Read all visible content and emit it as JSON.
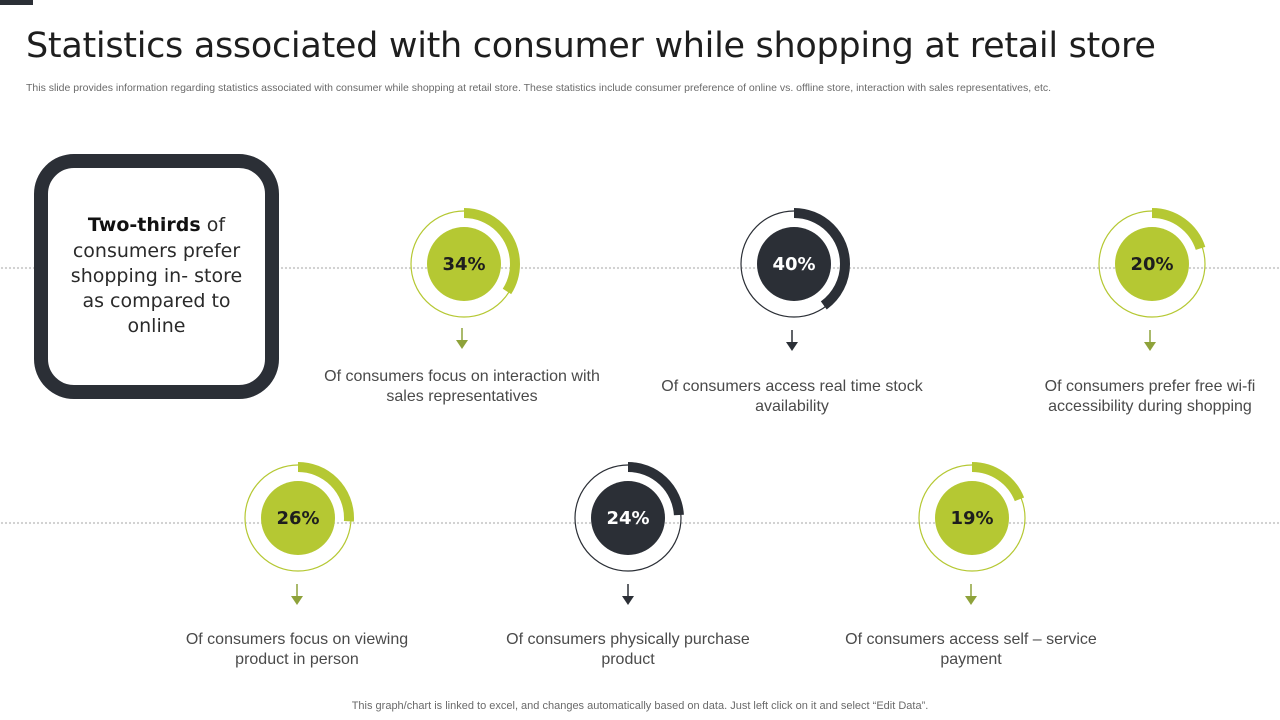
{
  "title": "Statistics associated with consumer while shopping at retail store",
  "subtitle": "This slide provides information regarding statistics associated with consumer while shopping at retail store. These statistics include consumer preference of online vs. offline store, interaction with sales representatives, etc.",
  "callout": {
    "highlight": "Two-thirds",
    "text": " of consumers prefer shopping in- store as compared to online"
  },
  "colors": {
    "green": "#b5c833",
    "dark": "#2b2f36"
  },
  "stats": [
    {
      "value_label": "34%",
      "value": 34,
      "color": "green",
      "caption": "Of consumers focus on interaction with sales representatives"
    },
    {
      "value_label": "40%",
      "value": 40,
      "color": "dark",
      "caption": "Of consumers access real time stock availability"
    },
    {
      "value_label": "20%",
      "value": 20,
      "color": "green",
      "caption": "Of consumers prefer free wi-fi accessibility during shopping"
    },
    {
      "value_label": "26%",
      "value": 26,
      "color": "green",
      "caption": "Of consumers focus on viewing product in person"
    },
    {
      "value_label": "24%",
      "value": 24,
      "color": "dark",
      "caption": "Of consumers physically purchase product"
    },
    {
      "value_label": "19%",
      "value": 19,
      "color": "green",
      "caption": "Of consumers access self – service payment"
    }
  ],
  "footer": "This graph/chart is linked to excel,  and changes automatically based on data. Just left click on it and select “Edit Data”."
}
